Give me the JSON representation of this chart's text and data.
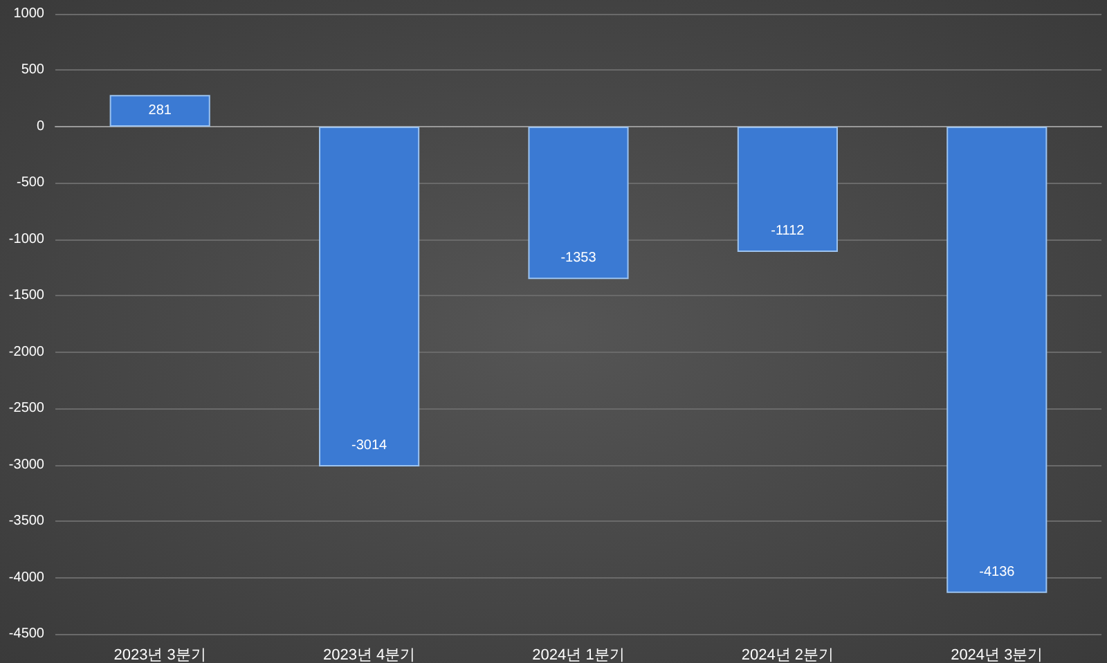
{
  "chart_data": {
    "type": "bar",
    "categories": [
      "2023년 3분기",
      "2023년 4분기",
      "2024년 1분기",
      "2024년 2분기",
      "2024년 3분기"
    ],
    "values": [
      281,
      -3014,
      -1353,
      -1112,
      -4136
    ],
    "color": "#3b7ad3",
    "ylim": [
      -4500,
      1000
    ],
    "yticks": [
      -4500,
      -4000,
      -3500,
      -3000,
      -2500,
      -2000,
      -1500,
      -1000,
      -500,
      0,
      500,
      1000
    ],
    "grid": "y",
    "data_labels": true
  }
}
